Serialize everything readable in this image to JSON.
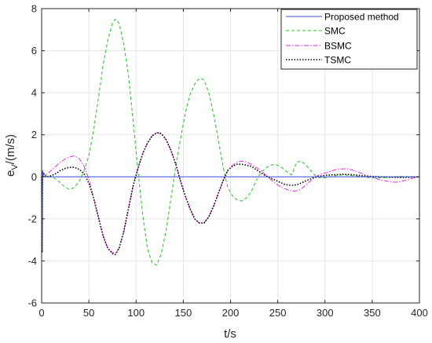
{
  "chart_data": {
    "type": "line",
    "title": "",
    "xlabel": "t/s",
    "ylabel_main": "e",
    "ylabel_sub": "V",
    "ylabel_rest": "/(m/s)",
    "xlim": [
      0,
      400
    ],
    "ylim": [
      -6,
      8
    ],
    "xticks": [
      0,
      50,
      100,
      150,
      200,
      250,
      300,
      350,
      400
    ],
    "yticks": [
      -6,
      -4,
      -2,
      0,
      2,
      4,
      6,
      8
    ],
    "xtick_labels": [
      "0",
      "50",
      "100",
      "150",
      "200",
      "250",
      "300",
      "350",
      "400"
    ],
    "ytick_labels": [
      "-6",
      "-4",
      "-2",
      "0",
      "2",
      "4",
      "6",
      "8"
    ],
    "grid": true,
    "legend_position": "top-right",
    "series": [
      {
        "name": "Proposed method",
        "color": "#3b4fd8",
        "style": "solid",
        "points": [
          [
            0,
            0
          ],
          [
            0.5,
            -3.5
          ],
          [
            1,
            0.3
          ],
          [
            2,
            0
          ],
          [
            400,
            0
          ]
        ]
      },
      {
        "name": "SMC",
        "color": "#22c022",
        "style": "dashed",
        "points": [
          [
            0,
            0
          ],
          [
            0.5,
            -3.6
          ],
          [
            1,
            0.25
          ],
          [
            5,
            0
          ],
          [
            10,
            0
          ],
          [
            15,
            -0.1
          ],
          [
            20,
            -0.3
          ],
          [
            25,
            -0.5
          ],
          [
            30,
            -0.6
          ],
          [
            35,
            -0.5
          ],
          [
            40,
            -0.2
          ],
          [
            45,
            0.3
          ],
          [
            50,
            1.0
          ],
          [
            55,
            2.2
          ],
          [
            60,
            3.7
          ],
          [
            65,
            5.3
          ],
          [
            70,
            6.5
          ],
          [
            75,
            7.3
          ],
          [
            78,
            7.5
          ],
          [
            82,
            7.3
          ],
          [
            87,
            6.3
          ],
          [
            92,
            4.8
          ],
          [
            97,
            2.6
          ],
          [
            102,
            0.3
          ],
          [
            107,
            -1.8
          ],
          [
            112,
            -3.4
          ],
          [
            117,
            -4.1
          ],
          [
            122,
            -4.2
          ],
          [
            127,
            -3.6
          ],
          [
            132,
            -2.5
          ],
          [
            137,
            -1.0
          ],
          [
            142,
            0.5
          ],
          [
            147,
            1.8
          ],
          [
            152,
            3.0
          ],
          [
            157,
            3.9
          ],
          [
            163,
            4.5
          ],
          [
            168,
            4.7
          ],
          [
            172,
            4.6
          ],
          [
            177,
            4.0
          ],
          [
            182,
            3.0
          ],
          [
            187,
            1.8
          ],
          [
            192,
            0.5
          ],
          [
            197,
            -0.5
          ],
          [
            202,
            -0.9
          ],
          [
            207,
            -1.1
          ],
          [
            212,
            -1.15
          ],
          [
            217,
            -1.0
          ],
          [
            222,
            -0.7
          ],
          [
            227,
            -0.2
          ],
          [
            232,
            0.2
          ],
          [
            237,
            0.4
          ],
          [
            242,
            0.55
          ],
          [
            247,
            0.6
          ],
          [
            252,
            0.5
          ],
          [
            257,
            0.35
          ],
          [
            262,
            0.15
          ],
          [
            265,
            0.1
          ],
          [
            270,
            0.7
          ],
          [
            275,
            0.75
          ],
          [
            280,
            0.55
          ],
          [
            285,
            0.3
          ],
          [
            290,
            0.05
          ],
          [
            295,
            -0.05
          ],
          [
            300,
            -0.05
          ],
          [
            310,
            0.05
          ],
          [
            320,
            0.1
          ],
          [
            330,
            0.05
          ],
          [
            340,
            0.0
          ],
          [
            350,
            -0.05
          ],
          [
            360,
            -0.05
          ],
          [
            370,
            0.0
          ],
          [
            380,
            0.02
          ],
          [
            390,
            0.0
          ],
          [
            400,
            0.0
          ]
        ]
      },
      {
        "name": "BSMC",
        "color": "#e62be6",
        "style": "dashdot",
        "points": [
          [
            0,
            0
          ],
          [
            0.5,
            -3.6
          ],
          [
            1,
            0.2
          ],
          [
            5,
            0.1
          ],
          [
            10,
            0.3
          ],
          [
            15,
            0.5
          ],
          [
            20,
            0.7
          ],
          [
            25,
            0.85
          ],
          [
            30,
            0.95
          ],
          [
            35,
            1.0
          ],
          [
            40,
            0.85
          ],
          [
            45,
            0.5
          ],
          [
            50,
            -0.1
          ],
          [
            55,
            -1.0
          ],
          [
            60,
            -1.9
          ],
          [
            65,
            -2.8
          ],
          [
            70,
            -3.4
          ],
          [
            75,
            -3.6
          ],
          [
            78,
            -3.65
          ],
          [
            82,
            -3.4
          ],
          [
            87,
            -2.6
          ],
          [
            92,
            -1.5
          ],
          [
            97,
            -0.4
          ],
          [
            102,
            0.4
          ],
          [
            107,
            1.1
          ],
          [
            112,
            1.6
          ],
          [
            117,
            1.95
          ],
          [
            122,
            2.1
          ],
          [
            127,
            2.05
          ],
          [
            132,
            1.75
          ],
          [
            137,
            1.25
          ],
          [
            142,
            0.6
          ],
          [
            147,
            -0.2
          ],
          [
            152,
            -0.9
          ],
          [
            157,
            -1.5
          ],
          [
            162,
            -2.0
          ],
          [
            167,
            -2.2
          ],
          [
            172,
            -2.2
          ],
          [
            177,
            -1.9
          ],
          [
            182,
            -1.4
          ],
          [
            187,
            -0.8
          ],
          [
            192,
            -0.2
          ],
          [
            197,
            0.3
          ],
          [
            202,
            0.55
          ],
          [
            207,
            0.7
          ],
          [
            212,
            0.75
          ],
          [
            217,
            0.7
          ],
          [
            222,
            0.6
          ],
          [
            227,
            0.45
          ],
          [
            232,
            0.3
          ],
          [
            237,
            0.1
          ],
          [
            242,
            -0.1
          ],
          [
            247,
            -0.3
          ],
          [
            252,
            -0.45
          ],
          [
            257,
            -0.55
          ],
          [
            262,
            -0.65
          ],
          [
            267,
            -0.68
          ],
          [
            272,
            -0.65
          ],
          [
            277,
            -0.5
          ],
          [
            282,
            -0.3
          ],
          [
            287,
            -0.1
          ],
          [
            292,
            0.05
          ],
          [
            297,
            0.15
          ],
          [
            302,
            0.2
          ],
          [
            307,
            0.28
          ],
          [
            312,
            0.35
          ],
          [
            317,
            0.38
          ],
          [
            322,
            0.38
          ],
          [
            327,
            0.35
          ],
          [
            332,
            0.28
          ],
          [
            337,
            0.2
          ],
          [
            342,
            0.1
          ],
          [
            347,
            0.0
          ],
          [
            352,
            -0.05
          ],
          [
            357,
            -0.12
          ],
          [
            362,
            -0.18
          ],
          [
            367,
            -0.22
          ],
          [
            372,
            -0.25
          ],
          [
            377,
            -0.25
          ],
          [
            382,
            -0.2
          ],
          [
            387,
            -0.15
          ],
          [
            392,
            -0.08
          ],
          [
            397,
            -0.02
          ],
          [
            400,
            0.0
          ]
        ]
      },
      {
        "name": "TSMC",
        "color": "#000000",
        "style": "dotted",
        "points": [
          [
            0,
            0
          ],
          [
            0.5,
            -3.6
          ],
          [
            1,
            0.2
          ],
          [
            5,
            0.0
          ],
          [
            10,
            0.05
          ],
          [
            15,
            0.15
          ],
          [
            20,
            0.3
          ],
          [
            25,
            0.4
          ],
          [
            30,
            0.45
          ],
          [
            35,
            0.45
          ],
          [
            40,
            0.35
          ],
          [
            45,
            0.15
          ],
          [
            50,
            -0.3
          ],
          [
            55,
            -1.0
          ],
          [
            60,
            -1.9
          ],
          [
            65,
            -2.8
          ],
          [
            70,
            -3.4
          ],
          [
            75,
            -3.65
          ],
          [
            78,
            -3.7
          ],
          [
            82,
            -3.4
          ],
          [
            87,
            -2.6
          ],
          [
            92,
            -1.5
          ],
          [
            97,
            -0.4
          ],
          [
            102,
            0.4
          ],
          [
            107,
            1.1
          ],
          [
            112,
            1.6
          ],
          [
            117,
            1.95
          ],
          [
            122,
            2.1
          ],
          [
            127,
            2.05
          ],
          [
            132,
            1.75
          ],
          [
            137,
            1.25
          ],
          [
            142,
            0.6
          ],
          [
            147,
            -0.2
          ],
          [
            152,
            -0.9
          ],
          [
            157,
            -1.5
          ],
          [
            162,
            -2.0
          ],
          [
            167,
            -2.2
          ],
          [
            172,
            -2.2
          ],
          [
            177,
            -1.9
          ],
          [
            182,
            -1.4
          ],
          [
            187,
            -0.8
          ],
          [
            192,
            -0.2
          ],
          [
            197,
            0.3
          ],
          [
            202,
            0.5
          ],
          [
            207,
            0.6
          ],
          [
            212,
            0.6
          ],
          [
            217,
            0.55
          ],
          [
            222,
            0.5
          ],
          [
            227,
            0.35
          ],
          [
            232,
            0.2
          ],
          [
            237,
            0.05
          ],
          [
            242,
            -0.05
          ],
          [
            247,
            -0.15
          ],
          [
            252,
            -0.25
          ],
          [
            257,
            -0.35
          ],
          [
            262,
            -0.4
          ],
          [
            267,
            -0.4
          ],
          [
            272,
            -0.35
          ],
          [
            277,
            -0.25
          ],
          [
            282,
            -0.15
          ],
          [
            287,
            -0.05
          ],
          [
            292,
            0.0
          ],
          [
            297,
            0.05
          ],
          [
            302,
            0.08
          ],
          [
            310,
            0.1
          ],
          [
            320,
            0.12
          ],
          [
            330,
            0.1
          ],
          [
            340,
            0.05
          ],
          [
            350,
            0.02
          ],
          [
            360,
            0.0
          ],
          [
            370,
            -0.02
          ],
          [
            380,
            -0.03
          ],
          [
            390,
            -0.02
          ],
          [
            400,
            0.0
          ]
        ]
      }
    ]
  }
}
